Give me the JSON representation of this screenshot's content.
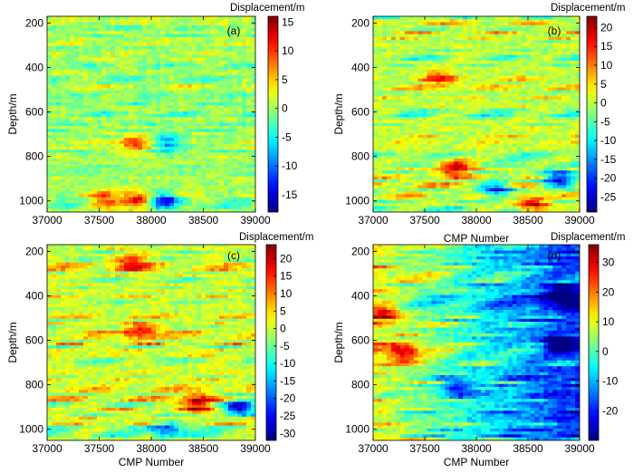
{
  "chart_data": [
    {
      "type": "heatmap",
      "panel_label": "(a)",
      "title": "Displacement/m",
      "xlabel": "",
      "ylabel": "Depth/m",
      "xlim": [
        37000,
        39000
      ],
      "ylim": [
        1050,
        170
      ],
      "x_ticks": [
        "37000",
        "37500",
        "38000",
        "38500",
        "39000"
      ],
      "y_ticks": [
        "200",
        "400",
        "600",
        "800",
        "1000"
      ],
      "colorbar": {
        "range": [
          -18,
          16
        ],
        "ticks": [
          "15",
          "10",
          "5",
          "0",
          "-5",
          "-10",
          "-15"
        ]
      },
      "hotspots": [
        {
          "x": 37900,
          "y": 1000,
          "value": 15
        },
        {
          "x": 38100,
          "y": 1000,
          "value": -15
        },
        {
          "x": 37850,
          "y": 740,
          "value": 10
        },
        {
          "x": 38150,
          "y": 740,
          "value": -10
        },
        {
          "x": 37550,
          "y": 1000,
          "value": 9
        }
      ]
    },
    {
      "type": "heatmap",
      "panel_label": "(b)",
      "title": "Displacement/m",
      "xlabel": "CMP Number",
      "ylabel": "Depth/m",
      "xlim": [
        37000,
        39000
      ],
      "ylim": [
        1050,
        170
      ],
      "x_ticks": [
        "37000",
        "37500",
        "38000",
        "38500",
        "39000"
      ],
      "y_ticks": [
        "200",
        "400",
        "600",
        "800",
        "1000"
      ],
      "colorbar": {
        "range": [
          -29,
          23
        ],
        "ticks": [
          "20",
          "15",
          "10",
          "5",
          "0",
          "-5",
          "-10",
          "-15",
          "-20",
          "-25"
        ]
      },
      "hotspots": [
        {
          "x": 37800,
          "y": 850,
          "value": 20
        },
        {
          "x": 37650,
          "y": 450,
          "value": 12
        },
        {
          "x": 38200,
          "y": 950,
          "value": -20
        },
        {
          "x": 38550,
          "y": 1020,
          "value": 20
        },
        {
          "x": 38800,
          "y": 900,
          "value": -25
        }
      ]
    },
    {
      "type": "heatmap",
      "panel_label": "(c)",
      "title": "Displacement/m",
      "xlabel": "CMP Number",
      "ylabel": "Depth/m",
      "xlim": [
        37000,
        39000
      ],
      "ylim": [
        1050,
        170
      ],
      "x_ticks": [
        "37000",
        "37500",
        "38000",
        "38500",
        "39000"
      ],
      "y_ticks": [
        "200",
        "400",
        "600",
        "800",
        "1000"
      ],
      "colorbar": {
        "range": [
          -32,
          24
        ],
        "ticks": [
          "20",
          "15",
          "10",
          "5",
          "0",
          "-5",
          "-10",
          "-15",
          "-20",
          "-25",
          "-30"
        ]
      },
      "hotspots": [
        {
          "x": 37900,
          "y": 560,
          "value": 18
        },
        {
          "x": 38450,
          "y": 880,
          "value": 22
        },
        {
          "x": 38850,
          "y": 900,
          "value": -28
        },
        {
          "x": 37800,
          "y": 250,
          "value": 15
        },
        {
          "x": 38150,
          "y": 1000,
          "value": -20
        }
      ]
    },
    {
      "type": "heatmap",
      "panel_label": "(d)",
      "title": "Displacement/m",
      "xlabel": "CMP Number",
      "ylabel": "Depth/m",
      "xlim": [
        37000,
        39000
      ],
      "ylim": [
        1050,
        170
      ],
      "x_ticks": [
        "37000",
        "37500",
        "38000",
        "38500",
        "39000"
      ],
      "y_ticks": [
        "200",
        "400",
        "600",
        "800",
        "1000"
      ],
      "colorbar": {
        "range": [
          -30,
          36
        ],
        "ticks": [
          "30",
          "20",
          "10",
          "0",
          "-10",
          "-20"
        ]
      },
      "hotspots": [
        {
          "x": 37300,
          "y": 650,
          "value": 25
        },
        {
          "x": 38800,
          "y": 400,
          "value": -25
        },
        {
          "x": 38800,
          "y": 620,
          "value": -28
        },
        {
          "x": 37800,
          "y": 820,
          "value": -18
        },
        {
          "x": 37100,
          "y": 480,
          "value": 20
        }
      ]
    }
  ]
}
